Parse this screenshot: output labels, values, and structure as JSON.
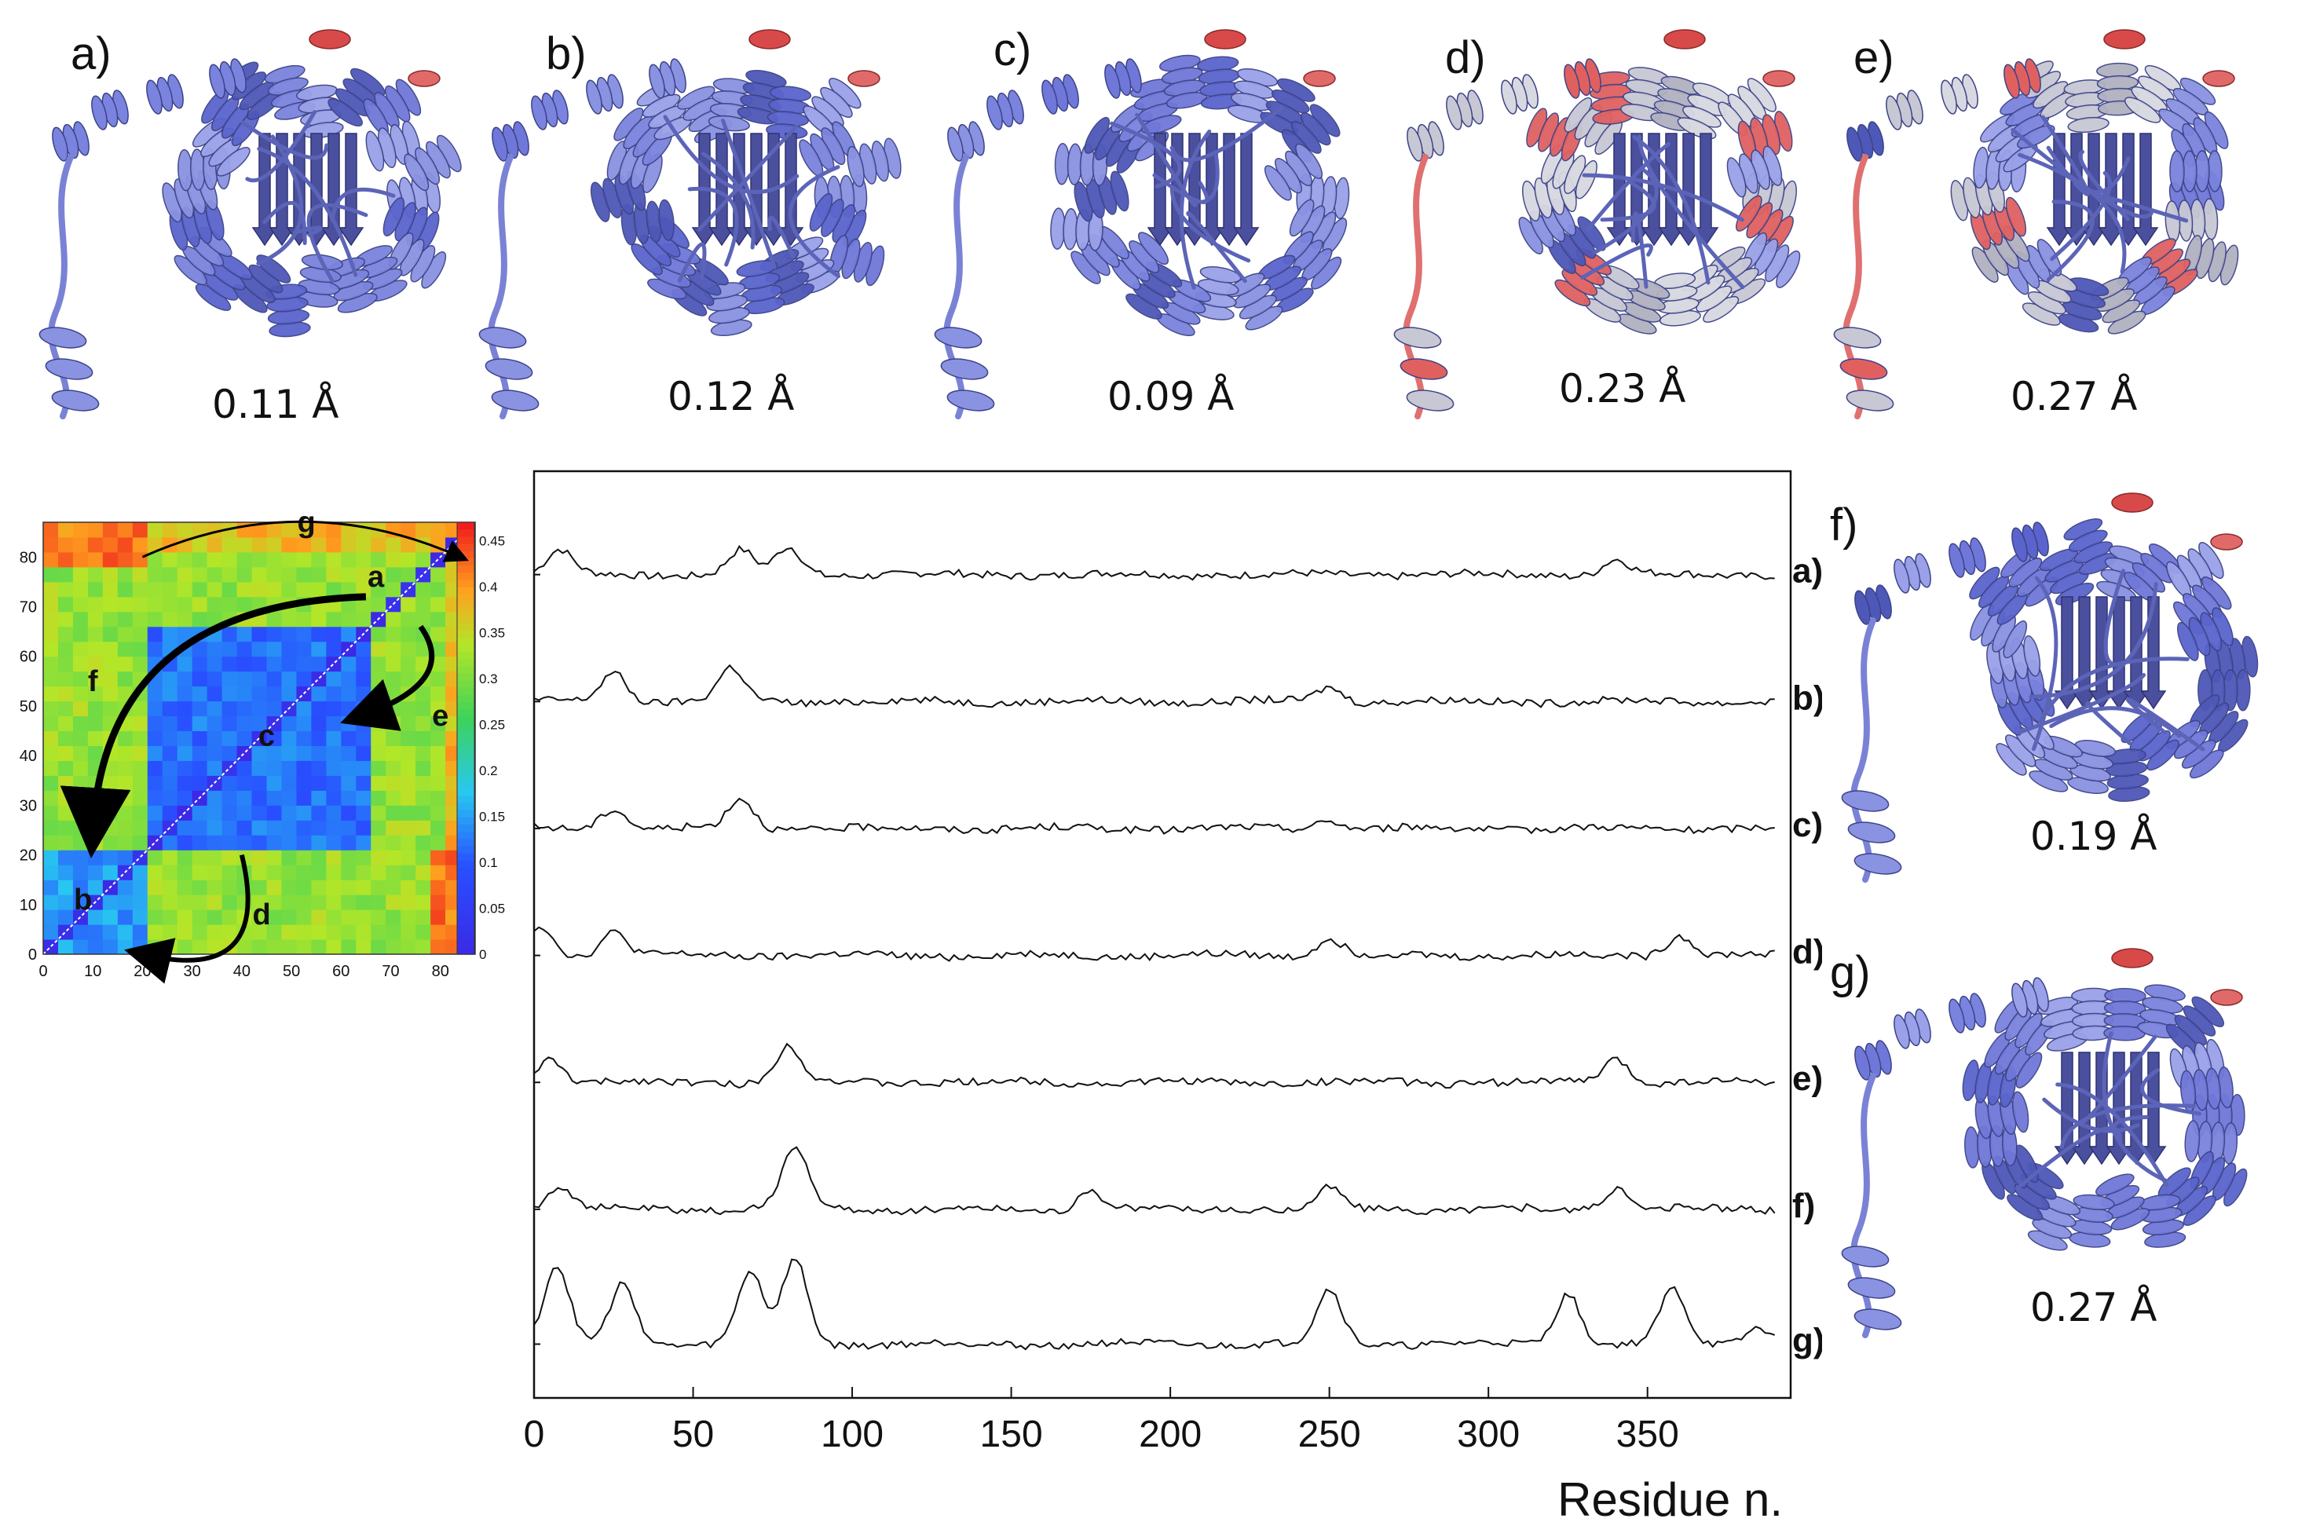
{
  "figure": {
    "structures": [
      {
        "label": "a)",
        "rmsd": "0.11 Å",
        "colors": "mostly-blue"
      },
      {
        "label": "b)",
        "rmsd": "0.12 Å",
        "colors": "mostly-blue"
      },
      {
        "label": "c)",
        "rmsd": "0.09 Å",
        "colors": "mostly-blue"
      },
      {
        "label": "d)",
        "rmsd": "0.23 Å",
        "colors": "mixed-white-red"
      },
      {
        "label": "e)",
        "rmsd": "0.27 Å",
        "colors": "mixed-white-red"
      },
      {
        "label": "f)",
        "rmsd": "0.19 Å",
        "colors": "mostly-blue"
      },
      {
        "label": "g)",
        "rmsd": "0.27 Å",
        "colors": "mostly-blue"
      }
    ],
    "matrix": {
      "ticks": [
        "0",
        "10",
        "20",
        "30",
        "40",
        "50",
        "60",
        "70",
        "80"
      ],
      "colorbar_ticks": [
        "0",
        "0.05",
        "0.1",
        "0.15",
        "0.2",
        "0.25",
        "0.3",
        "0.35",
        "0.4",
        "0.45"
      ],
      "annotations": [
        "a",
        "b",
        "c",
        "d",
        "e",
        "f",
        "g"
      ],
      "colors": {
        "low": "#2a3cff",
        "mid": "#33cc66",
        "high": "#ff2020"
      }
    },
    "profile": {
      "trace_labels": [
        "a)",
        "b)",
        "c)",
        "d)",
        "e)",
        "f)",
        "g)"
      ],
      "x_ticks": [
        "0",
        "50",
        "100",
        "150",
        "200",
        "250",
        "300",
        "350"
      ],
      "xlabel": "Residue n."
    }
  },
  "chart_data": {
    "type": "line",
    "x": [
      0,
      50,
      100,
      150,
      200,
      250,
      300,
      350
    ],
    "xlim": [
      0,
      395
    ],
    "xlabel": "Residue n.",
    "series": [
      {
        "name": "a)",
        "peaks": [
          [
            8,
            0.8
          ],
          [
            65,
            0.8
          ],
          [
            80,
            0.9
          ],
          [
            340,
            0.5
          ]
        ]
      },
      {
        "name": "b)",
        "peaks": [
          [
            25,
            1.0
          ],
          [
            62,
            1.1
          ],
          [
            250,
            0.5
          ]
        ]
      },
      {
        "name": "c)",
        "peaks": [
          [
            25,
            0.7
          ],
          [
            65,
            1.0
          ],
          [
            250,
            0.3
          ]
        ]
      },
      {
        "name": "d)",
        "peaks": [
          [
            2,
            1.0
          ],
          [
            25,
            0.8
          ],
          [
            250,
            0.6
          ],
          [
            360,
            0.7
          ]
        ]
      },
      {
        "name": "e)",
        "peaks": [
          [
            5,
            0.8
          ],
          [
            80,
            1.2
          ],
          [
            340,
            0.8
          ]
        ]
      },
      {
        "name": "f)",
        "peaks": [
          [
            8,
            0.8
          ],
          [
            82,
            2.1
          ],
          [
            175,
            0.6
          ],
          [
            250,
            0.7
          ],
          [
            340,
            0.7
          ]
        ]
      },
      {
        "name": "g)",
        "peaks": [
          [
            7,
            2.6
          ],
          [
            28,
            2.0
          ],
          [
            68,
            2.4
          ],
          [
            82,
            2.8
          ],
          [
            250,
            1.8
          ],
          [
            325,
            1.7
          ],
          [
            358,
            1.8
          ],
          [
            385,
            0.6
          ]
        ]
      }
    ]
  }
}
